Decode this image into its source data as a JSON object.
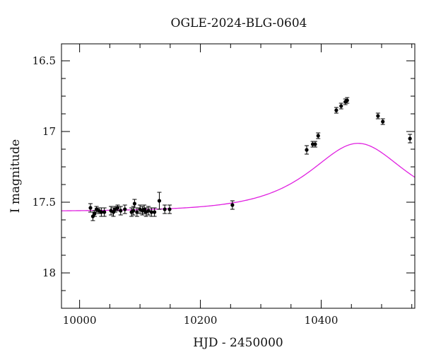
{
  "chart_data": {
    "type": "scatter",
    "title": "OGLE-2024-BLG-0604",
    "xlabel": "HJD - 2450000",
    "ylabel": "I magnitude",
    "xlim": [
      9970,
      10555
    ],
    "ylim": [
      18.25,
      16.38
    ],
    "y_inverted": true,
    "grid": false,
    "x_ticks": [
      10000,
      10200,
      10400
    ],
    "x_tick_labels": [
      "10000",
      "10200",
      "10400"
    ],
    "x_minor_step": 50,
    "y_ticks": [
      16.5,
      17,
      17.5,
      18
    ],
    "y_tick_labels": [
      "16.5",
      "17",
      "17.5",
      "18"
    ],
    "y_minor_step": 0.125,
    "colors": {
      "points": "#000000",
      "model": "#e020e0",
      "frame": "#000000"
    },
    "series": [
      {
        "kind": "points_with_errorbars",
        "x": [
          10018,
          10022,
          10025,
          10028,
          10032,
          10036,
          10041,
          10052,
          10056,
          10059,
          10063,
          10068,
          10075,
          10086,
          10089,
          10091,
          10095,
          10100,
          10104,
          10107,
          10110,
          10114,
          10119,
          10124,
          10132,
          10141,
          10149,
          10253,
          10376,
          10386,
          10390,
          10395,
          10425,
          10433,
          10440,
          10443,
          10494,
          10502,
          10547
        ],
        "y": [
          17.54,
          17.6,
          17.58,
          17.55,
          17.56,
          17.57,
          17.57,
          17.56,
          17.57,
          17.55,
          17.54,
          17.56,
          17.55,
          17.57,
          17.56,
          17.51,
          17.57,
          17.55,
          17.56,
          17.55,
          17.57,
          17.56,
          17.57,
          17.57,
          17.49,
          17.55,
          17.55,
          17.52,
          17.13,
          17.09,
          17.09,
          17.03,
          16.85,
          16.82,
          16.79,
          16.78,
          16.89,
          16.93,
          17.05
        ],
        "err": [
          0.03,
          0.03,
          0.02,
          0.02,
          0.02,
          0.03,
          0.03,
          0.03,
          0.03,
          0.02,
          0.02,
          0.03,
          0.03,
          0.03,
          0.03,
          0.03,
          0.03,
          0.03,
          0.03,
          0.03,
          0.03,
          0.03,
          0.03,
          0.03,
          0.06,
          0.03,
          0.03,
          0.03,
          0.03,
          0.02,
          0.02,
          0.02,
          0.02,
          0.02,
          0.02,
          0.02,
          0.02,
          0.02,
          0.03
        ]
      },
      {
        "kind": "model_curve",
        "baseline": 17.565,
        "t0": 10461,
        "u0": 0.78,
        "tE": 110,
        "x_range": [
          9970,
          10555
        ]
      }
    ]
  }
}
